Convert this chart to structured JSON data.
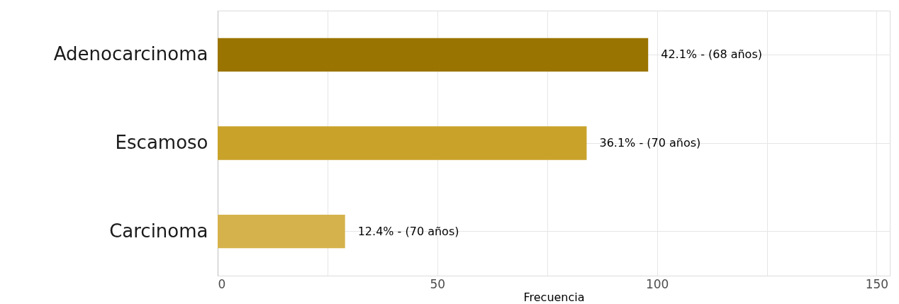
{
  "chart_data": {
    "type": "bar",
    "orientation": "horizontal",
    "xlabel": "Frecuencia",
    "categories": [
      "Adenocarcinoma",
      "Escamoso",
      "Carcinoma"
    ],
    "values": [
      98,
      84,
      29
    ],
    "colors": [
      "#9a7400",
      "#c9a22a",
      "#d5b24c"
    ],
    "annotations": [
      {
        "text": "42.1% - (68 años)",
        "x": 98,
        "y": "Adenocarcinoma"
      },
      {
        "text": "36.1% - (70 años)",
        "x": 84,
        "y": "Escamoso"
      },
      {
        "text": "12.4% - (70 años)",
        "x": 29,
        "y": "Carcinoma"
      }
    ],
    "xlim": [
      0,
      153
    ],
    "xticks": [
      0,
      {
        "value": 25,
        "label": null
      },
      50,
      {
        "value": 75,
        "label": null
      },
      100,
      {
        "value": 125,
        "label": null
      },
      150
    ],
    "grid": true
  }
}
